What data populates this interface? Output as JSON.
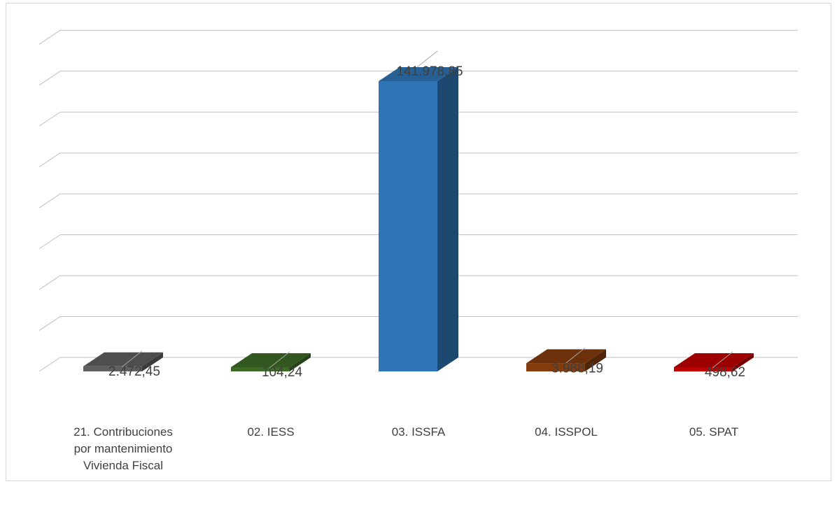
{
  "chart_data": {
    "type": "bar",
    "style": "3d-column",
    "title": "",
    "xlabel": "",
    "ylabel": "",
    "categories": [
      "21. Contribuciones por mantenimiento Vivienda Fiscal",
      "02. IESS",
      "03. ISSFA",
      "04. ISSPOL",
      "05. SPAT"
    ],
    "values": [
      2472.45,
      104.24,
      141978.85,
      3988.19,
      498.62
    ],
    "data_labels": [
      "2.472,45",
      "104,24",
      "141.978,85",
      "3.988,19",
      "498,62"
    ],
    "colors": [
      "#5f5f5f",
      "#3d6b27",
      "#2e75b6",
      "#843c0c",
      "#c00000"
    ],
    "ylim": [
      0,
      160000
    ],
    "gridlines": true,
    "legend": "none"
  }
}
